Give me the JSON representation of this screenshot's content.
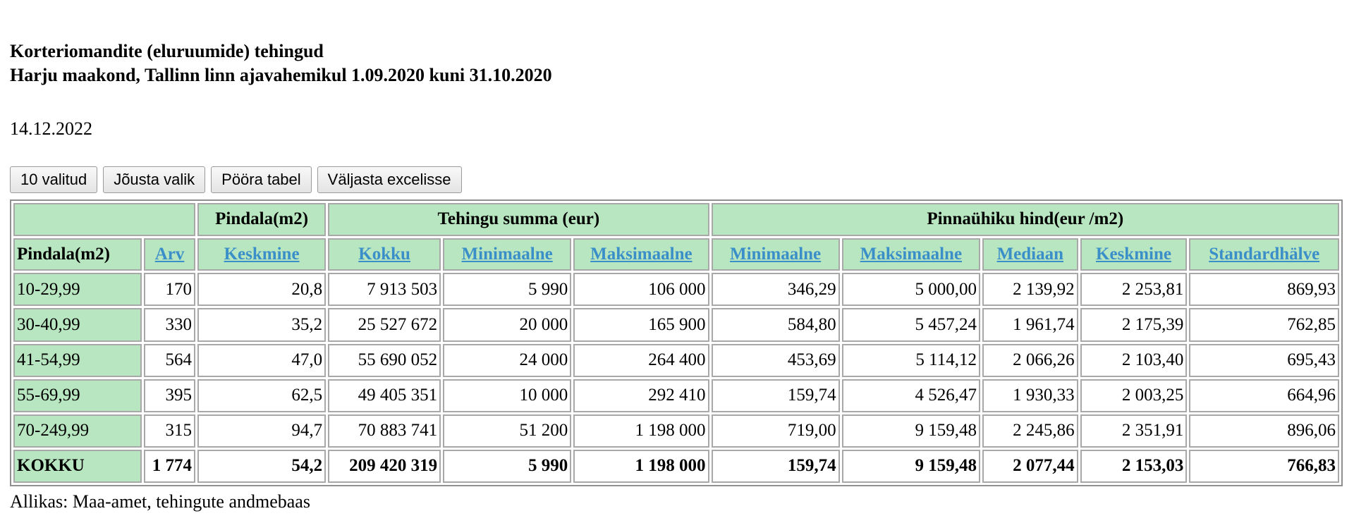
{
  "header": {
    "title_line1": "Korteriomandite (eluruumide) tehingud",
    "title_line2": "Harju maakond, Tallinn linn ajavahemikul 1.09.2020 kuni 31.10.2020",
    "date": "14.12.2022"
  },
  "toolbar": {
    "selected_label": "10 valitud",
    "apply_label": "Jõusta valik",
    "rotate_label": "Pööra tabel",
    "export_label": "Väljasta excelisse"
  },
  "table": {
    "group_headers": {
      "area": "Pindala(m2)",
      "deal_sum": "Tehingu summa (eur)",
      "unit_price": "Pinnaühiku hind(eur /m2)"
    },
    "columns": {
      "area_range": "Pindala(m2)",
      "count": "Arv",
      "area_avg": "Keskmine",
      "sum_total": "Kokku",
      "sum_min": "Minimaalne",
      "sum_max": "Maksimaalne",
      "price_min": "Minimaalne",
      "price_max": "Maksimaalne",
      "price_median": "Mediaan",
      "price_avg": "Keskmine",
      "price_std": "Standardhälve"
    },
    "rows": [
      [
        "10-29,99",
        "170",
        "20,8",
        "7 913 503",
        "5 990",
        "106 000",
        "346,29",
        "5 000,00",
        "2 139,92",
        "2 253,81",
        "869,93"
      ],
      [
        "30-40,99",
        "330",
        "35,2",
        "25 527 672",
        "20 000",
        "165 900",
        "584,80",
        "5 457,24",
        "1 961,74",
        "2 175,39",
        "762,85"
      ],
      [
        "41-54,99",
        "564",
        "47,0",
        "55 690 052",
        "24 000",
        "264 400",
        "453,69",
        "5 114,12",
        "2 066,26",
        "2 103,40",
        "695,43"
      ],
      [
        "55-69,99",
        "395",
        "62,5",
        "49 405 351",
        "10 000",
        "292 410",
        "159,74",
        "4 526,47",
        "1 930,33",
        "2 003,25",
        "664,96"
      ],
      [
        "70-249,99",
        "315",
        "94,7",
        "70 883 741",
        "51 200",
        "1 198 000",
        "719,00",
        "9 159,48",
        "2 245,86",
        "2 351,91",
        "896,06"
      ]
    ],
    "total": [
      "KOKKU",
      "1 774",
      "54,2",
      "209 420 319",
      "5 990",
      "1 198 000",
      "159,74",
      "9 159,48",
      "2 077,44",
      "2 153,03",
      "766,83"
    ]
  },
  "footer": {
    "source": "Allikas: Maa-amet, tehingute andmebaas"
  }
}
